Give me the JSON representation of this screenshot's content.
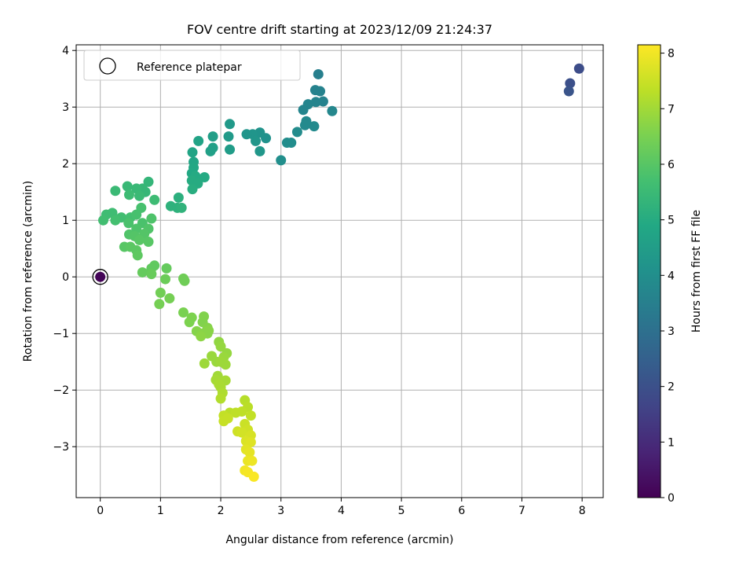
{
  "chart_data": {
    "type": "scatter",
    "title": "FOV centre drift starting at 2023/12/09 21:24:37",
    "xlabel": "Angular distance from reference (arcmin)",
    "ylabel": "Rotation from reference (arcmin)",
    "xlim": [
      -0.4,
      8.35
    ],
    "ylim": [
      -3.9,
      4.1
    ],
    "x_ticks": [
      0,
      1,
      2,
      3,
      4,
      5,
      6,
      7,
      8
    ],
    "y_ticks": [
      -3,
      -2,
      -1,
      0,
      1,
      2,
      3,
      4
    ],
    "x_tick_labels": [
      "0",
      "1",
      "2",
      "3",
      "4",
      "5",
      "6",
      "7",
      "8"
    ],
    "y_tick_labels": [
      "−3",
      "−2",
      "−1",
      "0",
      "1",
      "2",
      "3",
      "4"
    ],
    "grid": true,
    "legend": {
      "position": "top-left",
      "entries": [
        "Reference platepar"
      ]
    },
    "reference_point": {
      "x": 0,
      "y": 0,
      "hours": 0.1
    },
    "colorbar": {
      "label": "Hours from first FF file",
      "colormap": "viridis",
      "range": [
        0,
        8.15
      ],
      "ticks": [
        0,
        1,
        2,
        3,
        4,
        5,
        6,
        7,
        8
      ],
      "tick_labels": [
        "0",
        "1",
        "2",
        "3",
        "4",
        "5",
        "6",
        "7",
        "8"
      ]
    },
    "points": [
      {
        "x": 7.95,
        "y": 3.68,
        "h": 1.9
      },
      {
        "x": 7.8,
        "y": 3.42,
        "h": 2.0
      },
      {
        "x": 7.78,
        "y": 3.28,
        "h": 2.1
      },
      {
        "x": 3.62,
        "y": 3.58,
        "h": 3.5
      },
      {
        "x": 3.57,
        "y": 3.3,
        "h": 3.6
      },
      {
        "x": 3.65,
        "y": 3.28,
        "h": 3.6
      },
      {
        "x": 3.7,
        "y": 3.1,
        "h": 3.6
      },
      {
        "x": 3.58,
        "y": 3.09,
        "h": 3.65
      },
      {
        "x": 3.45,
        "y": 3.05,
        "h": 3.7
      },
      {
        "x": 3.37,
        "y": 2.95,
        "h": 3.7
      },
      {
        "x": 3.85,
        "y": 2.93,
        "h": 3.75
      },
      {
        "x": 3.42,
        "y": 2.75,
        "h": 3.8
      },
      {
        "x": 3.4,
        "y": 2.68,
        "h": 3.85
      },
      {
        "x": 3.55,
        "y": 2.66,
        "h": 3.85
      },
      {
        "x": 3.27,
        "y": 2.56,
        "h": 3.9
      },
      {
        "x": 3.1,
        "y": 2.37,
        "h": 3.95
      },
      {
        "x": 3.17,
        "y": 2.37,
        "h": 3.95
      },
      {
        "x": 3.0,
        "y": 2.06,
        "h": 4.0
      },
      {
        "x": 2.75,
        "y": 2.45,
        "h": 4.1
      },
      {
        "x": 2.65,
        "y": 2.55,
        "h": 4.15
      },
      {
        "x": 2.53,
        "y": 2.52,
        "h": 4.2
      },
      {
        "x": 2.43,
        "y": 2.52,
        "h": 4.2
      },
      {
        "x": 2.58,
        "y": 2.4,
        "h": 4.25
      },
      {
        "x": 2.65,
        "y": 2.22,
        "h": 4.3
      },
      {
        "x": 2.15,
        "y": 2.7,
        "h": 4.35
      },
      {
        "x": 2.13,
        "y": 2.48,
        "h": 4.4
      },
      {
        "x": 2.15,
        "y": 2.25,
        "h": 4.45
      },
      {
        "x": 1.87,
        "y": 2.48,
        "h": 4.55
      },
      {
        "x": 1.87,
        "y": 2.28,
        "h": 4.6
      },
      {
        "x": 1.83,
        "y": 2.22,
        "h": 4.6
      },
      {
        "x": 1.63,
        "y": 2.4,
        "h": 4.7
      },
      {
        "x": 1.53,
        "y": 2.2,
        "h": 4.75
      },
      {
        "x": 1.55,
        "y": 2.03,
        "h": 4.8
      },
      {
        "x": 1.55,
        "y": 1.93,
        "h": 4.85
      },
      {
        "x": 1.52,
        "y": 1.83,
        "h": 4.9
      },
      {
        "x": 1.58,
        "y": 1.78,
        "h": 4.95
      },
      {
        "x": 1.73,
        "y": 1.76,
        "h": 4.95
      },
      {
        "x": 1.52,
        "y": 1.7,
        "h": 5.0
      },
      {
        "x": 1.62,
        "y": 1.65,
        "h": 5.0
      },
      {
        "x": 1.53,
        "y": 1.55,
        "h": 5.05
      },
      {
        "x": 1.3,
        "y": 1.4,
        "h": 5.15
      },
      {
        "x": 1.17,
        "y": 1.25,
        "h": 5.2
      },
      {
        "x": 1.28,
        "y": 1.22,
        "h": 5.2
      },
      {
        "x": 1.35,
        "y": 1.22,
        "h": 5.25
      },
      {
        "x": 0.8,
        "y": 1.68,
        "h": 5.35
      },
      {
        "x": 0.7,
        "y": 1.56,
        "h": 5.4
      },
      {
        "x": 0.75,
        "y": 1.5,
        "h": 5.4
      },
      {
        "x": 0.6,
        "y": 1.56,
        "h": 5.45
      },
      {
        "x": 0.45,
        "y": 1.6,
        "h": 5.45
      },
      {
        "x": 0.25,
        "y": 1.52,
        "h": 5.5
      },
      {
        "x": 0.65,
        "y": 1.43,
        "h": 5.5
      },
      {
        "x": 0.48,
        "y": 1.45,
        "h": 5.55
      },
      {
        "x": 0.9,
        "y": 1.36,
        "h": 5.55
      },
      {
        "x": 0.2,
        "y": 1.13,
        "h": 5.6
      },
      {
        "x": 0.1,
        "y": 1.1,
        "h": 5.6
      },
      {
        "x": 0.05,
        "y": 1.0,
        "h": 5.65
      },
      {
        "x": 0.35,
        "y": 1.05,
        "h": 5.65
      },
      {
        "x": 0.25,
        "y": 1.0,
        "h": 5.7
      },
      {
        "x": 0.5,
        "y": 1.05,
        "h": 5.7
      },
      {
        "x": 0.68,
        "y": 1.22,
        "h": 5.75
      },
      {
        "x": 0.6,
        "y": 1.1,
        "h": 5.75
      },
      {
        "x": 0.47,
        "y": 0.95,
        "h": 5.8
      },
      {
        "x": 0.7,
        "y": 0.95,
        "h": 5.8
      },
      {
        "x": 0.85,
        "y": 1.03,
        "h": 5.85
      },
      {
        "x": 0.6,
        "y": 0.85,
        "h": 5.85
      },
      {
        "x": 0.8,
        "y": 0.85,
        "h": 5.9
      },
      {
        "x": 0.48,
        "y": 0.75,
        "h": 5.9
      },
      {
        "x": 0.73,
        "y": 0.76,
        "h": 5.95
      },
      {
        "x": 0.57,
        "y": 0.72,
        "h": 5.95
      },
      {
        "x": 0.65,
        "y": 0.65,
        "h": 6.0
      },
      {
        "x": 0.8,
        "y": 0.62,
        "h": 6.0
      },
      {
        "x": 0.4,
        "y": 0.53,
        "h": 6.0
      },
      {
        "x": 0.5,
        "y": 0.53,
        "h": 6.05
      },
      {
        "x": 0.6,
        "y": 0.47,
        "h": 6.05
      },
      {
        "x": 0.62,
        "y": 0.38,
        "h": 6.1
      },
      {
        "x": 0.9,
        "y": 0.2,
        "h": 6.15
      },
      {
        "x": 0.85,
        "y": 0.15,
        "h": 6.15
      },
      {
        "x": 1.1,
        "y": 0.15,
        "h": 6.2
      },
      {
        "x": 0.7,
        "y": 0.08,
        "h": 6.2
      },
      {
        "x": 0.85,
        "y": 0.05,
        "h": 6.25
      },
      {
        "x": 1.08,
        "y": -0.04,
        "h": 6.3
      },
      {
        "x": 1.38,
        "y": -0.03,
        "h": 6.35
      },
      {
        "x": 1.4,
        "y": -0.07,
        "h": 6.35
      },
      {
        "x": 1.0,
        "y": -0.28,
        "h": 6.4
      },
      {
        "x": 1.15,
        "y": -0.38,
        "h": 6.45
      },
      {
        "x": 0.98,
        "y": -0.48,
        "h": 6.45
      },
      {
        "x": 1.38,
        "y": -0.63,
        "h": 6.5
      },
      {
        "x": 1.52,
        "y": -0.72,
        "h": 6.55
      },
      {
        "x": 1.48,
        "y": -0.8,
        "h": 6.55
      },
      {
        "x": 1.72,
        "y": -0.7,
        "h": 6.6
      },
      {
        "x": 1.7,
        "y": -0.8,
        "h": 6.6
      },
      {
        "x": 1.78,
        "y": -0.9,
        "h": 6.65
      },
      {
        "x": 1.6,
        "y": -0.96,
        "h": 6.65
      },
      {
        "x": 1.7,
        "y": -1.0,
        "h": 6.7
      },
      {
        "x": 1.78,
        "y": -1.0,
        "h": 6.7
      },
      {
        "x": 1.8,
        "y": -0.95,
        "h": 6.7
      },
      {
        "x": 1.67,
        "y": -1.05,
        "h": 6.75
      },
      {
        "x": 1.97,
        "y": -1.15,
        "h": 6.8
      },
      {
        "x": 2.0,
        "y": -1.23,
        "h": 6.85
      },
      {
        "x": 2.1,
        "y": -1.35,
        "h": 6.85
      },
      {
        "x": 1.85,
        "y": -1.4,
        "h": 6.9
      },
      {
        "x": 2.05,
        "y": -1.42,
        "h": 6.9
      },
      {
        "x": 1.93,
        "y": -1.5,
        "h": 6.9
      },
      {
        "x": 2.0,
        "y": -1.5,
        "h": 6.95
      },
      {
        "x": 1.73,
        "y": -1.53,
        "h": 6.95
      },
      {
        "x": 2.08,
        "y": -1.55,
        "h": 6.95
      },
      {
        "x": 1.95,
        "y": -1.75,
        "h": 7.0
      },
      {
        "x": 1.92,
        "y": -1.82,
        "h": 7.05
      },
      {
        "x": 2.08,
        "y": -1.83,
        "h": 7.05
      },
      {
        "x": 1.97,
        "y": -1.9,
        "h": 7.1
      },
      {
        "x": 2.0,
        "y": -1.95,
        "h": 7.1
      },
      {
        "x": 2.03,
        "y": -2.05,
        "h": 7.15
      },
      {
        "x": 2.0,
        "y": -2.15,
        "h": 7.2
      },
      {
        "x": 2.4,
        "y": -2.18,
        "h": 7.25
      },
      {
        "x": 2.45,
        "y": -2.3,
        "h": 7.3
      },
      {
        "x": 2.15,
        "y": -2.4,
        "h": 7.3
      },
      {
        "x": 2.25,
        "y": -2.4,
        "h": 7.35
      },
      {
        "x": 2.35,
        "y": -2.38,
        "h": 7.35
      },
      {
        "x": 2.05,
        "y": -2.45,
        "h": 7.4
      },
      {
        "x": 2.5,
        "y": -2.45,
        "h": 7.4
      },
      {
        "x": 2.12,
        "y": -2.5,
        "h": 7.45
      },
      {
        "x": 2.05,
        "y": -2.55,
        "h": 7.45
      },
      {
        "x": 2.4,
        "y": -2.6,
        "h": 7.5
      },
      {
        "x": 2.45,
        "y": -2.7,
        "h": 7.55
      },
      {
        "x": 2.28,
        "y": -2.73,
        "h": 7.55
      },
      {
        "x": 2.35,
        "y": -2.75,
        "h": 7.6
      },
      {
        "x": 2.5,
        "y": -2.8,
        "h": 7.65
      },
      {
        "x": 2.42,
        "y": -2.9,
        "h": 7.7
      },
      {
        "x": 2.5,
        "y": -2.92,
        "h": 7.75
      },
      {
        "x": 2.42,
        "y": -3.05,
        "h": 7.8
      },
      {
        "x": 2.48,
        "y": -3.1,
        "h": 7.85
      },
      {
        "x": 2.45,
        "y": -3.25,
        "h": 7.9
      },
      {
        "x": 2.52,
        "y": -3.25,
        "h": 7.95
      },
      {
        "x": 2.4,
        "y": -3.42,
        "h": 8.0
      },
      {
        "x": 2.45,
        "y": -3.45,
        "h": 8.05
      },
      {
        "x": 2.55,
        "y": -3.53,
        "h": 8.1
      }
    ]
  }
}
